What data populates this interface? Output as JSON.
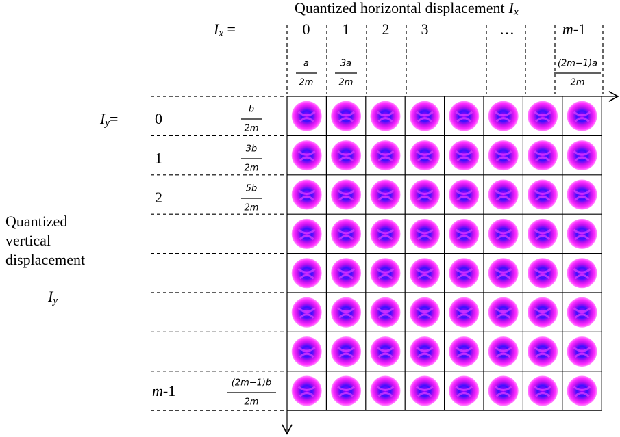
{
  "x_axis": {
    "title": "Quantized horizontal displacement",
    "symbol": {
      "main": "I",
      "sub": "x"
    },
    "equation": {
      "main": "I",
      "sub": "x",
      "suffix": " ="
    },
    "labels": [
      "0",
      "1",
      "2",
      "3",
      "…"
    ],
    "last_label": {
      "var": "m",
      "rest": "-1"
    },
    "offsets": [
      {
        "num": "a",
        "den": "2m"
      },
      {
        "num": "3a",
        "den": "2m"
      },
      {
        "num": "(2m−1)a",
        "den": "2m"
      }
    ]
  },
  "y_axis": {
    "title_lines": [
      "Quantized",
      " vertical",
      "displacement"
    ],
    "symbol": {
      "main": "I",
      "sub": "y"
    },
    "equation": {
      "main": "I",
      "sub": "y",
      "suffix": "="
    },
    "labels": [
      "0",
      "1",
      "2"
    ],
    "last_label": {
      "var": "m",
      "rest": "-1"
    },
    "offsets": [
      {
        "num": "b",
        "den": "2m"
      },
      {
        "num": "3b",
        "den": "2m"
      },
      {
        "num": "5b",
        "den": "2m"
      },
      {
        "num": "(2m−1)b",
        "den": "2m"
      }
    ]
  }
}
